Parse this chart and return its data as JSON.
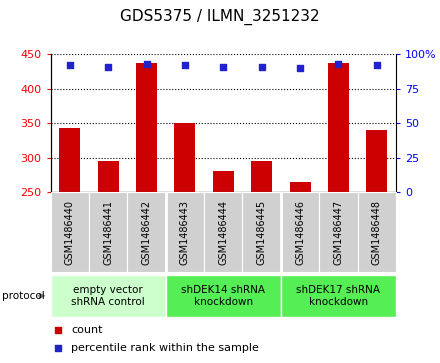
{
  "title": "GDS5375 / ILMN_3251232",
  "samples": [
    "GSM1486440",
    "GSM1486441",
    "GSM1486442",
    "GSM1486443",
    "GSM1486444",
    "GSM1486445",
    "GSM1486446",
    "GSM1486447",
    "GSM1486448"
  ],
  "counts": [
    343,
    295,
    438,
    350,
    281,
    295,
    265,
    437,
    340
  ],
  "percentiles": [
    92,
    91,
    93,
    92,
    91,
    91,
    90,
    93,
    92
  ],
  "ylim_left": [
    250,
    450
  ],
  "ylim_right": [
    0,
    100
  ],
  "yticks_left": [
    250,
    300,
    350,
    400,
    450
  ],
  "yticks_right": [
    0,
    25,
    50,
    75,
    100
  ],
  "bar_color": "#cc0000",
  "dot_color": "#2222cc",
  "bar_bottom": 250,
  "groups": [
    {
      "label": "empty vector\nshRNA control",
      "start": 0,
      "end": 3,
      "color": "#ccffcc"
    },
    {
      "label": "shDEK14 shRNA\nknockdown",
      "start": 3,
      "end": 6,
      "color": "#55ee55"
    },
    {
      "label": "shDEK17 shRNA\nknockdown",
      "start": 6,
      "end": 9,
      "color": "#55ee55"
    }
  ],
  "protocol_label": "protocol",
  "legend_items": [
    {
      "color": "#cc0000",
      "label": "count"
    },
    {
      "color": "#2222cc",
      "label": "percentile rank within the sample"
    }
  ],
  "title_fontsize": 11,
  "tick_fontsize": 8,
  "label_fontsize": 8,
  "sample_label_fontsize": 7,
  "group_label_fontsize": 7.5
}
